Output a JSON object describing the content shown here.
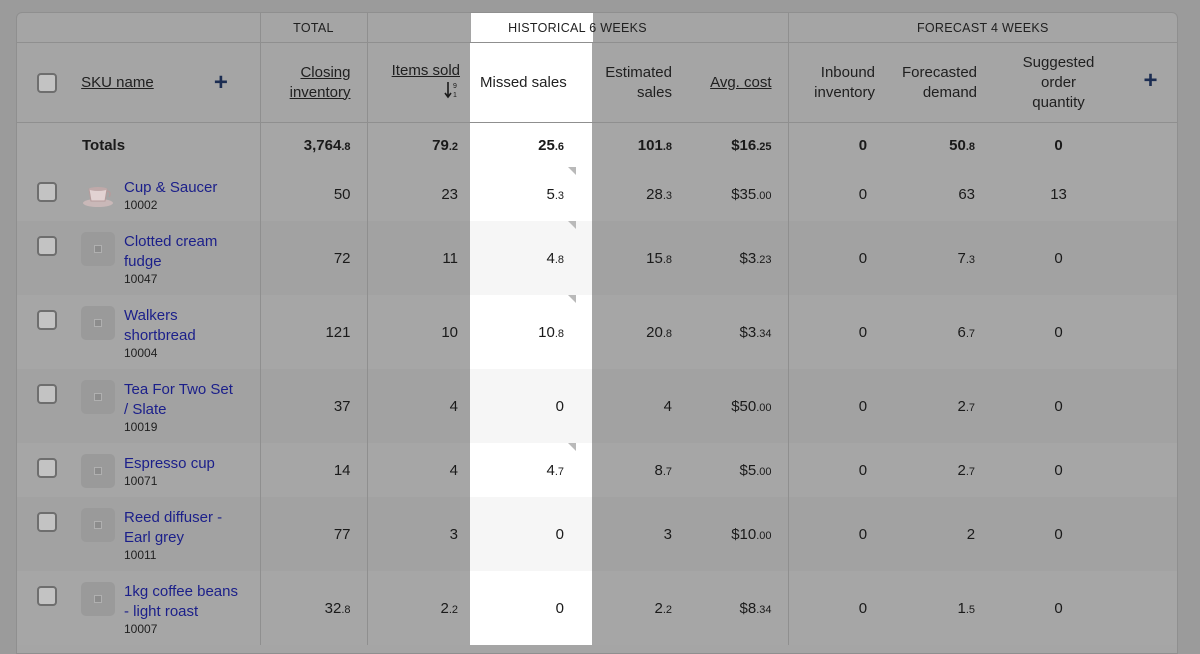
{
  "groups": {
    "total": "TOTAL",
    "historical": "HISTORICAL 6 WEEKS",
    "forecast": "FORECAST 4 WEEKS"
  },
  "headers": {
    "sku_name": "SKU name",
    "closing_1": "Closing",
    "closing_2": "inventory",
    "items_sold": "Items sold",
    "missed_sales": "Missed sales",
    "estimated_1": "Estimated",
    "estimated_2": "sales",
    "avg_cost": "Avg. cost",
    "inbound_1": "Inbound",
    "inbound_2": "inventory",
    "forecast_1": "Forecasted",
    "forecast_2": "demand",
    "suggested_1": "Suggested",
    "suggested_2": "order",
    "suggested_3": "quantity",
    "sort_glyph_top": "9",
    "sort_glyph_bottom": "1"
  },
  "totals": {
    "label": "Totals",
    "closing": [
      "3,764",
      ".8"
    ],
    "items_sold": [
      "79",
      ".2"
    ],
    "missed": [
      "25",
      ".6"
    ],
    "estimated": [
      "101",
      ".8"
    ],
    "avg_cost": [
      "$16",
      ".25"
    ],
    "inbound": "0",
    "forecast": [
      "50",
      ".8"
    ],
    "suggested": "0"
  },
  "rows": [
    {
      "name_1": "Cup & Saucer",
      "name_2": "",
      "id": "10002",
      "closing": [
        "50",
        ""
      ],
      "items_sold": [
        "23",
        ""
      ],
      "missed": [
        "5",
        ".3"
      ],
      "estimated": [
        "28",
        ".3"
      ],
      "avg_cost": [
        "$35",
        ".00"
      ],
      "inbound": "0",
      "forecast": [
        "63",
        ""
      ],
      "suggested": "13",
      "thumb": "cup-icon"
    },
    {
      "name_1": "Clotted cream",
      "name_2": "fudge",
      "id": "10047",
      "closing": [
        "72",
        ""
      ],
      "items_sold": [
        "11",
        ""
      ],
      "missed": [
        "4",
        ".8"
      ],
      "estimated": [
        "15",
        ".8"
      ],
      "avg_cost": [
        "$3",
        ".23"
      ],
      "inbound": "0",
      "forecast": [
        "7",
        ".3"
      ],
      "suggested": "0",
      "thumb": "placeholder-icon"
    },
    {
      "name_1": "Walkers",
      "name_2": "shortbread",
      "id": "10004",
      "closing": [
        "121",
        ""
      ],
      "items_sold": [
        "10",
        ""
      ],
      "missed": [
        "10",
        ".8"
      ],
      "estimated": [
        "20",
        ".8"
      ],
      "avg_cost": [
        "$3",
        ".34"
      ],
      "inbound": "0",
      "forecast": [
        "6",
        ".7"
      ],
      "suggested": "0",
      "thumb": "placeholder-icon"
    },
    {
      "name_1": "Tea For Two Set",
      "name_2": "/ Slate",
      "id": "10019",
      "closing": [
        "37",
        ""
      ],
      "items_sold": [
        "4",
        ""
      ],
      "missed": [
        "0",
        ""
      ],
      "estimated": [
        "4",
        ""
      ],
      "avg_cost": [
        "$50",
        ".00"
      ],
      "inbound": "0",
      "forecast": [
        "2",
        ".7"
      ],
      "suggested": "0",
      "thumb": "placeholder-icon"
    },
    {
      "name_1": "Espresso cup",
      "name_2": "",
      "id": "10071",
      "closing": [
        "14",
        ""
      ],
      "items_sold": [
        "4",
        ""
      ],
      "missed": [
        "4",
        ".7"
      ],
      "estimated": [
        "8",
        ".7"
      ],
      "avg_cost": [
        "$5",
        ".00"
      ],
      "inbound": "0",
      "forecast": [
        "2",
        ".7"
      ],
      "suggested": "0",
      "thumb": "placeholder-icon"
    },
    {
      "name_1": "Reed diffuser -",
      "name_2": "Earl grey",
      "id": "10011",
      "closing": [
        "77",
        ""
      ],
      "items_sold": [
        "3",
        ""
      ],
      "missed": [
        "0",
        ""
      ],
      "estimated": [
        "3",
        ""
      ],
      "avg_cost": [
        "$10",
        ".00"
      ],
      "inbound": "0",
      "forecast": [
        "2",
        ""
      ],
      "suggested": "0",
      "thumb": "placeholder-icon"
    },
    {
      "name_1": "1kg coffee beans",
      "name_2": "- light roast",
      "id": "10007",
      "closing": [
        "32",
        ".8"
      ],
      "items_sold": [
        "2",
        ".2"
      ],
      "missed": [
        "0",
        ""
      ],
      "estimated": [
        "2",
        ".2"
      ],
      "avg_cost": [
        "$8",
        ".34"
      ],
      "inbound": "0",
      "forecast": [
        "1",
        ".5"
      ],
      "suggested": "0",
      "thumb": "placeholder-icon"
    }
  ]
}
